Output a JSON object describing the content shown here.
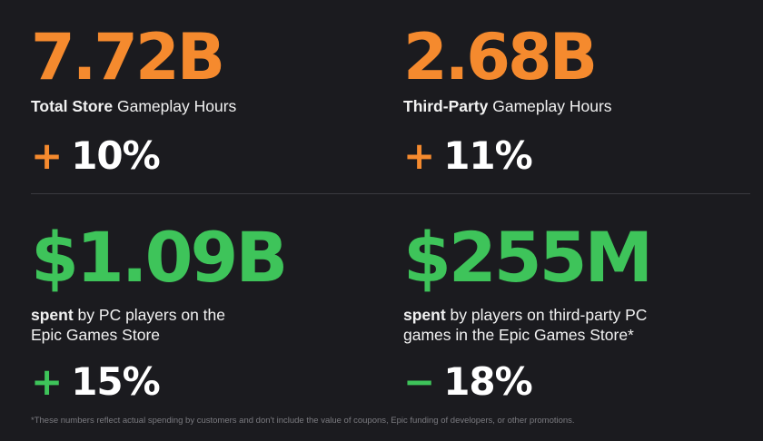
{
  "colors": {
    "background": "#1b1b1f",
    "orange_accent": "#f58a2e",
    "green_accent": "#3ec45a",
    "text": "#ffffff",
    "footnote": "#7b7b80"
  },
  "stats": {
    "total_hours": {
      "value": "7.72B",
      "label_bold": "Total Store",
      "label_rest": " Gameplay Hours",
      "change_sign": "+",
      "change_value": "10%"
    },
    "third_party_hours": {
      "value": "2.68B",
      "label_bold": "Third-Party",
      "label_rest": " Gameplay Hours",
      "change_sign": "+",
      "change_value": "11%"
    },
    "pc_spend": {
      "value": "$1.09B",
      "label_bold": "spent",
      "label_line1_rest": " by PC players on the",
      "label_line2": "Epic Games Store",
      "change_sign": "+",
      "change_value": "15%"
    },
    "third_party_spend": {
      "value": "$255M",
      "label_bold": "spent",
      "label_line1_rest": " by players on third-party PC",
      "label_line2": "games in the Epic Games Store*",
      "change_sign": "−",
      "change_value": "18%"
    }
  },
  "footnote": "*These numbers reflect actual spending by customers and don't include the value of coupons, Epic funding of developers, or other promotions."
}
